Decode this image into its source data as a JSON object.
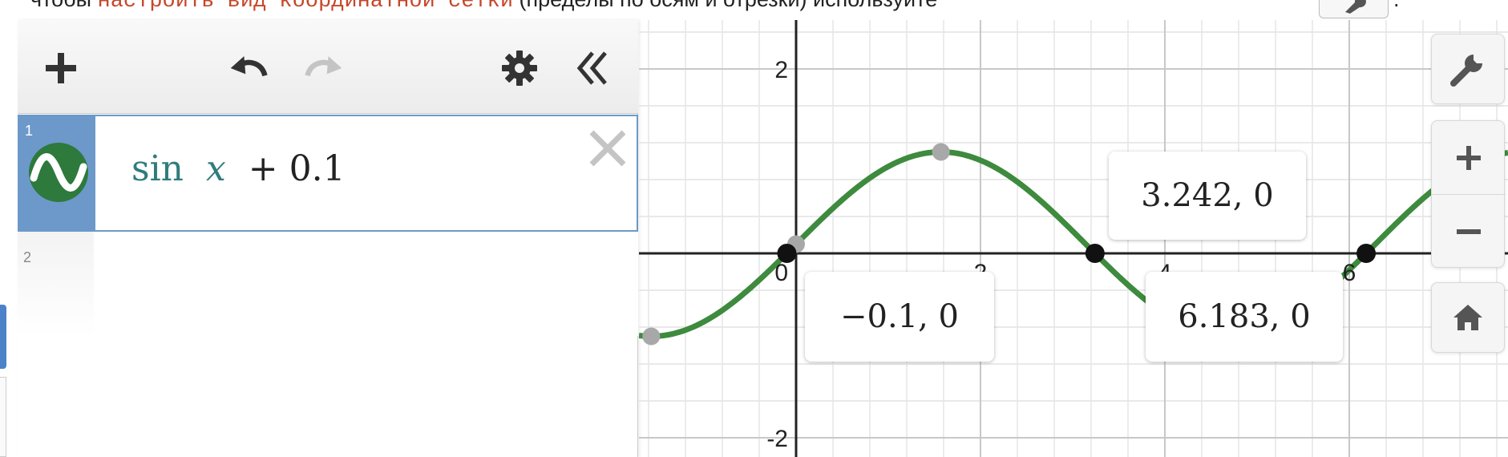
{
  "top_strip": {
    "before": "чтобы ",
    "code": "настроить вид координатной сетки",
    "after": " (пределы по осям и отрезки) используйте",
    "end": "."
  },
  "toolbar": {
    "add_icon": "plus-icon",
    "undo_icon": "undo-icon",
    "redo_icon": "redo-icon",
    "settings_icon": "gear-icon",
    "collapse_icon": "double-chevron-left-icon"
  },
  "expressions": [
    {
      "index": "1",
      "fn": "sin",
      "var": "x",
      "rest": "+ 0.1",
      "color": "#2d7a3c"
    },
    {
      "index": "2"
    }
  ],
  "graph": {
    "tick_labels": {
      "y_pos": "2",
      "y_neg": "-2",
      "origin": "0",
      "x_2": "2",
      "x_4": "4",
      "x_6": "6"
    },
    "curve_color": "#3e8a3e",
    "point_labels": [
      {
        "text": "−0.1, 0"
      },
      {
        "text": "3.242, 0"
      },
      {
        "text": "6.183, 0"
      }
    ]
  },
  "controls": {
    "settings_icon": "wrench-icon",
    "zoom_in_icon": "plus-icon",
    "zoom_out_icon": "minus-icon",
    "home_icon": "home-icon"
  },
  "chart_data": {
    "type": "line",
    "function": "sin(x) + 0.1",
    "xlim": [
      -2.75,
      5.9
    ],
    "ylim": [
      -2.2,
      2.5
    ],
    "grid": true,
    "x_intercepts": [
      -0.1,
      3.242,
      6.183
    ],
    "highlighted_points": [
      {
        "x": -1.571,
        "y": -0.9
      },
      {
        "x": 0,
        "y": 0.1
      },
      {
        "x": 1.571,
        "y": 1.1
      }
    ],
    "series": [
      {
        "values_from": "function"
      }
    ]
  }
}
